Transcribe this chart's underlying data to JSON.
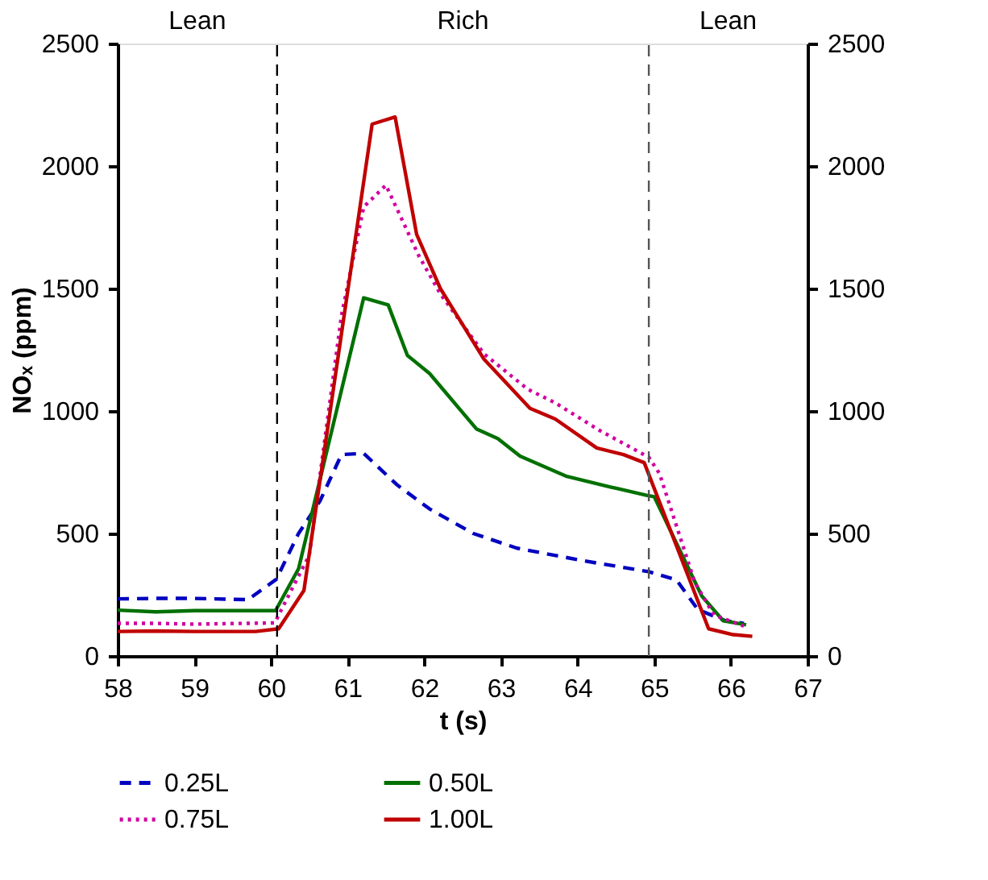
{
  "chart_data": {
    "type": "line",
    "xlabel": "t (s)",
    "ylabel": "NOₓ (ppm)",
    "xlim": [
      58,
      67
    ],
    "xticks": [
      58,
      59,
      60,
      61,
      62,
      63,
      64,
      65,
      66,
      67
    ],
    "ylim": [
      0,
      2500
    ],
    "yticks": [
      0,
      500,
      1000,
      1500,
      2000,
      2500
    ],
    "y2lim": [
      0,
      2500
    ],
    "y2ticks": [
      0,
      500,
      1000,
      1500,
      2000,
      2500
    ],
    "grid": false,
    "legend": "bottom",
    "marker": "none",
    "ref_lines": [
      {
        "axis": "x",
        "value": 60.08,
        "color": "#000000",
        "line_style": "dashed"
      },
      {
        "axis": "x",
        "value": 64.93,
        "color": "#555555",
        "line_style": "dashed"
      }
    ],
    "annotations": [
      "Lean",
      "Rich",
      "Lean"
    ],
    "series": [
      {
        "name": "0.25L",
        "color": "#0000c0",
        "line_style": "dashed",
        "x": [
          58.0,
          58.5,
          59.0,
          59.7,
          60.07,
          60.36,
          60.64,
          60.92,
          61.21,
          61.64,
          62.07,
          62.64,
          63.21,
          64.07,
          64.93,
          65.29,
          65.57,
          65.93,
          66.17
        ],
        "values": [
          233,
          235,
          235,
          230,
          313,
          500,
          633,
          822,
          827,
          700,
          600,
          500,
          440,
          389,
          344,
          311,
          189,
          144,
          133
        ]
      },
      {
        "name": "0.50L",
        "color": "#007000",
        "line_style": "solid",
        "x": [
          58.0,
          58.5,
          59.0,
          60.06,
          60.36,
          61.21,
          61.53,
          61.78,
          62.07,
          62.68,
          62.96,
          63.25,
          63.86,
          64.44,
          64.9,
          65.0,
          65.62,
          65.9,
          66.2
        ],
        "values": [
          187,
          180,
          185,
          185,
          356,
          1462,
          1433,
          1227,
          1153,
          927,
          887,
          816,
          733,
          689,
          656,
          650,
          245,
          144,
          127
        ]
      },
      {
        "name": "0.75L",
        "color": "#d000a0",
        "line_style": "dotted",
        "x": [
          58.0,
          58.5,
          59.0,
          60.05,
          60.1,
          60.5,
          60.92,
          61.21,
          61.5,
          61.93,
          62.21,
          62.78,
          63.35,
          63.71,
          64.28,
          64.93,
          65.07,
          65.53,
          65.78,
          66.17
        ],
        "values": [
          133,
          133,
          130,
          135,
          167,
          411,
          1389,
          1833,
          1922,
          1633,
          1478,
          1233,
          1089,
          1033,
          922,
          811,
          744,
          300,
          167,
          122
        ]
      },
      {
        "name": "1.00L",
        "color": "#c00000",
        "line_style": "solid",
        "x": [
          58.0,
          58.5,
          59.0,
          59.8,
          60.1,
          60.43,
          61.32,
          61.62,
          61.9,
          62.21,
          62.78,
          63.38,
          63.71,
          64.25,
          64.6,
          64.87,
          65.71,
          66.03,
          66.28
        ],
        "values": [
          100,
          102,
          100,
          100,
          111,
          267,
          2171,
          2200,
          1722,
          1500,
          1211,
          1011,
          967,
          849,
          822,
          789,
          111,
          87,
          80
        ]
      }
    ]
  }
}
